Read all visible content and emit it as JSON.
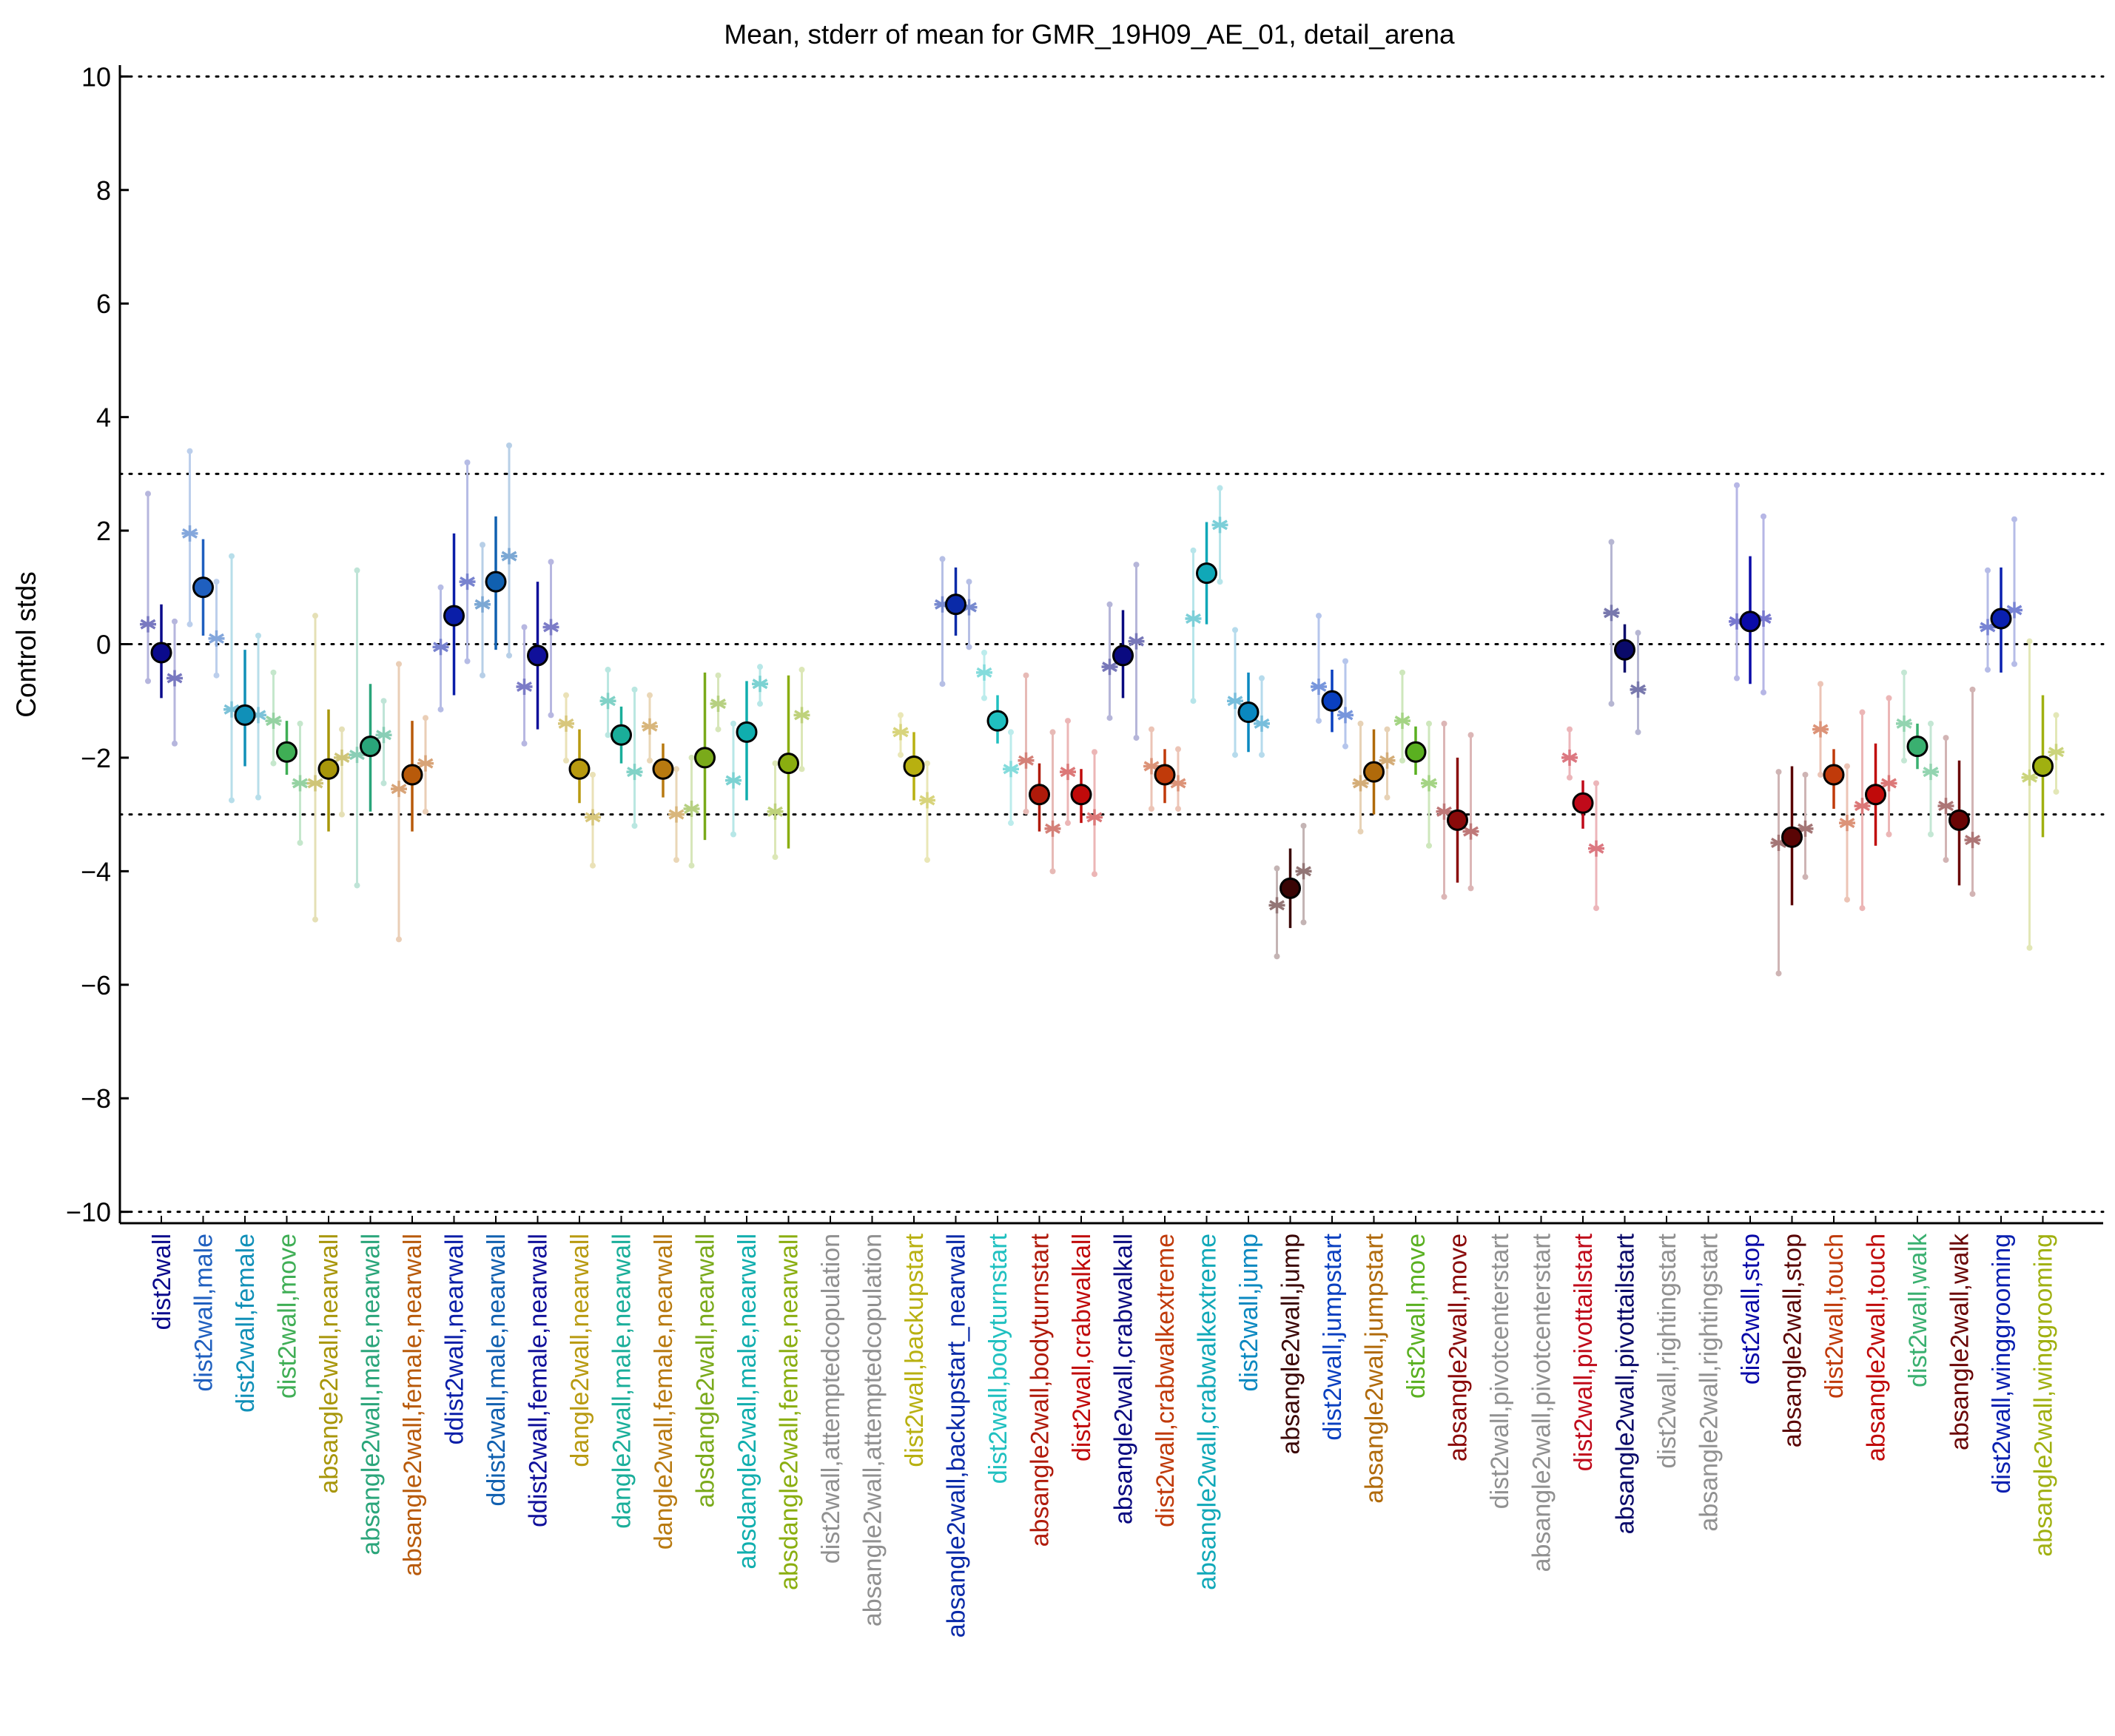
{
  "chart_data": {
    "type": "scatter",
    "title": "Mean, stderr of mean for GMR_19H09_AE_01, detail_arena",
    "xlabel": "",
    "ylabel": "Control stds",
    "ylim": [
      -10.2,
      10.2
    ],
    "yticks": [
      10,
      8,
      6,
      4,
      2,
      0,
      -2,
      -4,
      -6,
      -8,
      -10
    ],
    "reference_lines": [
      10,
      3,
      0,
      -3,
      -10
    ],
    "grid": false,
    "legend": "none",
    "categories": [
      "dist2wall",
      "dist2wall,male",
      "dist2wall,female",
      "dist2wall,move",
      "absangle2wall,nearwall",
      "absangle2wall,male,nearwall",
      "absangle2wall,female,nearwall",
      "ddist2wall,nearwall",
      "ddist2wall,male,nearwall",
      "ddist2wall,female,nearwall",
      "dangle2wall,nearwall",
      "dangle2wall,male,nearwall",
      "dangle2wall,female,nearwall",
      "absdangle2wall,nearwall",
      "absdangle2wall,male,nearwall",
      "absdangle2wall,female,nearwall",
      "dist2wall,attemptedcopulation",
      "absangle2wall,attemptedcopulation",
      "dist2wall,backupstart",
      "absangle2wall,backupstart_nearwall",
      "dist2wall,bodyturnstart",
      "absangle2wall,bodyturnstart",
      "dist2wall,crabwalkall",
      "absangle2wall,crabwalkall",
      "dist2wall,crabwalkextreme",
      "absangle2wall,crabwalkextreme",
      "dist2wall,jump",
      "absangle2wall,jump",
      "dist2wall,jumpstart",
      "absangle2wall,jumpstart",
      "dist2wall,move",
      "absangle2wall,move",
      "dist2wall,pivotcenterstart",
      "absangle2wall,pivotcenterstart",
      "dist2wall,pivottailstart",
      "absangle2wall,pivottailstart",
      "dist2wall,rightingstart",
      "absangle2wall,rightingstart",
      "dist2wall,stop",
      "absangle2wall,stop",
      "dist2wall,touch",
      "absangle2wall,touch",
      "dist2wall,walk",
      "absangle2wall,walk",
      "dist2wall,winggrooming",
      "absangle2wall,winggrooming"
    ],
    "label_colors": [
      "#0a0a8c",
      "#1f5fbf",
      "#1090b8",
      "#3fae55",
      "#a8960a",
      "#2aa57a",
      "#b85a0a",
      "#0a1ea8",
      "#1060b0",
      "#10109a",
      "#b89a10",
      "#1aae9a",
      "#b87a10",
      "#7aaa1a",
      "#10aeae",
      "#8aae10",
      "#909090",
      "#909090",
      "#b8b010",
      "#0a2aa8",
      "#20c0c0",
      "#b01a0a",
      "#c00a0a",
      "#0a0a80",
      "#c03a0a",
      "#10a8b8",
      "#0a88c0",
      "#3a0505",
      "#0a40c0",
      "#b06a0a",
      "#5ab020",
      "#8a0a0a",
      "#909090",
      "#909090",
      "#c00a1a",
      "#0a0a6a",
      "#909090",
      "#909090",
      "#0a0aa8",
      "#5a0505",
      "#c03a0a",
      "#c00a0a",
      "#3ab070",
      "#6a0505",
      "#0a20b0",
      "#a0b010"
    ],
    "points": [
      {
        "mean": -0.15,
        "lo": -0.95,
        "hi": 0.7,
        "color": "#0a0a8c",
        "subs": [
          {
            "off": -18,
            "m": 0.35,
            "lo": -0.65,
            "hi": 2.65
          },
          {
            "off": 18,
            "m": -0.6,
            "lo": -1.75,
            "hi": 0.4
          }
        ]
      },
      {
        "mean": 1.0,
        "lo": 0.15,
        "hi": 1.85,
        "color": "#1f5fbf",
        "subs": [
          {
            "off": -18,
            "m": 1.95,
            "lo": 0.35,
            "hi": 3.4
          },
          {
            "off": 18,
            "m": 0.1,
            "lo": -0.55,
            "hi": 1.1
          }
        ]
      },
      {
        "mean": -1.25,
        "lo": -2.15,
        "hi": -0.1,
        "color": "#1090b8",
        "subs": [
          {
            "off": -18,
            "m": -1.15,
            "lo": -2.75,
            "hi": 1.55
          },
          {
            "off": 18,
            "m": -1.25,
            "lo": -2.7,
            "hi": 0.15
          }
        ]
      },
      {
        "mean": -1.9,
        "lo": -2.3,
        "hi": -1.35,
        "color": "#3fae55",
        "subs": [
          {
            "off": -18,
            "m": -1.35,
            "lo": -2.1,
            "hi": -0.5
          },
          {
            "off": 18,
            "m": -2.45,
            "lo": -3.5,
            "hi": -1.4
          }
        ]
      },
      {
        "mean": -2.2,
        "lo": -3.3,
        "hi": -1.15,
        "color": "#a8960a",
        "subs": [
          {
            "off": -18,
            "m": -2.45,
            "lo": -4.85,
            "hi": 0.5
          },
          {
            "off": 18,
            "m": -2.0,
            "lo": -3.0,
            "hi": -1.5
          }
        ]
      },
      {
        "mean": -1.8,
        "lo": -2.95,
        "hi": -0.7,
        "color": "#2aa57a",
        "subs": [
          {
            "off": -18,
            "m": -1.95,
            "lo": -4.25,
            "hi": 1.3
          },
          {
            "off": 18,
            "m": -1.6,
            "lo": -2.45,
            "hi": -1.0
          }
        ]
      },
      {
        "mean": -2.3,
        "lo": -3.3,
        "hi": -1.35,
        "color": "#b85a0a",
        "subs": [
          {
            "off": -18,
            "m": -2.55,
            "lo": -5.2,
            "hi": -0.35
          },
          {
            "off": 18,
            "m": -2.1,
            "lo": -2.95,
            "hi": -1.3
          }
        ]
      },
      {
        "mean": 0.5,
        "lo": -0.9,
        "hi": 1.95,
        "color": "#0a1ea8",
        "subs": [
          {
            "off": -18,
            "m": -0.05,
            "lo": -1.15,
            "hi": 1.0
          },
          {
            "off": 18,
            "m": 1.1,
            "lo": -0.3,
            "hi": 3.2
          }
        ]
      },
      {
        "mean": 1.1,
        "lo": -0.1,
        "hi": 2.25,
        "color": "#1060b0",
        "subs": [
          {
            "off": -18,
            "m": 0.7,
            "lo": -0.55,
            "hi": 1.75
          },
          {
            "off": 18,
            "m": 1.55,
            "lo": -0.2,
            "hi": 3.5
          }
        ]
      },
      {
        "mean": -0.2,
        "lo": -1.5,
        "hi": 1.1,
        "color": "#10109a",
        "subs": [
          {
            "off": -18,
            "m": -0.75,
            "lo": -1.75,
            "hi": 0.3
          },
          {
            "off": 18,
            "m": 0.3,
            "lo": -1.25,
            "hi": 1.45
          }
        ]
      },
      {
        "mean": -2.2,
        "lo": -2.8,
        "hi": -1.5,
        "color": "#b89a10",
        "subs": [
          {
            "off": -18,
            "m": -1.4,
            "lo": -2.05,
            "hi": -0.9
          },
          {
            "off": 18,
            "m": -3.05,
            "lo": -3.9,
            "hi": -2.3
          }
        ]
      },
      {
        "mean": -1.6,
        "lo": -2.1,
        "hi": -1.1,
        "color": "#1aae9a",
        "subs": [
          {
            "off": -18,
            "m": -1.0,
            "lo": -1.6,
            "hi": -0.45
          },
          {
            "off": 18,
            "m": -2.25,
            "lo": -3.2,
            "hi": -0.8
          }
        ]
      },
      {
        "mean": -2.2,
        "lo": -2.7,
        "hi": -1.75,
        "color": "#b87a10",
        "subs": [
          {
            "off": -18,
            "m": -1.45,
            "lo": -2.05,
            "hi": -0.9
          },
          {
            "off": 18,
            "m": -3.0,
            "lo": -3.8,
            "hi": -2.2
          }
        ]
      },
      {
        "mean": -2.0,
        "lo": -3.45,
        "hi": -0.5,
        "color": "#7aaa1a",
        "subs": [
          {
            "off": -18,
            "m": -2.9,
            "lo": -3.9,
            "hi": -2.0
          },
          {
            "off": 18,
            "m": -1.05,
            "lo": -1.5,
            "hi": -0.55
          }
        ]
      },
      {
        "mean": -1.55,
        "lo": -2.75,
        "hi": -0.65,
        "color": "#10aeae",
        "subs": [
          {
            "off": -18,
            "m": -2.4,
            "lo": -3.35,
            "hi": -1.4
          },
          {
            "off": 18,
            "m": -0.7,
            "lo": -1.05,
            "hi": -0.4
          }
        ]
      },
      {
        "mean": -2.1,
        "lo": -3.6,
        "hi": -0.55,
        "color": "#8aae10",
        "subs": [
          {
            "off": -18,
            "m": -2.95,
            "lo": -3.75,
            "hi": -2.1
          },
          {
            "off": 18,
            "m": -1.25,
            "lo": -2.2,
            "hi": -0.45
          }
        ]
      },
      null,
      null,
      {
        "mean": -2.15,
        "lo": -2.75,
        "hi": -1.55,
        "color": "#b8b010",
        "subs": [
          {
            "off": -18,
            "m": -1.55,
            "lo": -1.95,
            "hi": -1.25
          },
          {
            "off": 18,
            "m": -2.75,
            "lo": -3.8,
            "hi": -2.1
          }
        ]
      },
      {
        "mean": 0.7,
        "lo": 0.15,
        "hi": 1.35,
        "color": "#0a2aa8",
        "subs": [
          {
            "off": -18,
            "m": 0.7,
            "lo": -0.7,
            "hi": 1.5
          },
          {
            "off": 18,
            "m": 0.65,
            "lo": -0.05,
            "hi": 1.1
          }
        ]
      },
      {
        "mean": -1.35,
        "lo": -1.75,
        "hi": -0.9,
        "color": "#20c0c0",
        "subs": [
          {
            "off": -18,
            "m": -0.5,
            "lo": -0.95,
            "hi": -0.15
          },
          {
            "off": 18,
            "m": -2.2,
            "lo": -3.15,
            "hi": -1.55
          }
        ]
      },
      {
        "mean": -2.65,
        "lo": -3.3,
        "hi": -2.1,
        "color": "#b01a0a",
        "subs": [
          {
            "off": -18,
            "m": -2.05,
            "lo": -2.95,
            "hi": -0.55
          },
          {
            "off": 18,
            "m": -3.25,
            "lo": -4.0,
            "hi": -1.55
          }
        ]
      },
      {
        "mean": -2.65,
        "lo": -3.15,
        "hi": -2.2,
        "color": "#c00a0a",
        "subs": [
          {
            "off": -18,
            "m": -2.25,
            "lo": -3.15,
            "hi": -1.35
          },
          {
            "off": 18,
            "m": -3.05,
            "lo": -4.05,
            "hi": -1.9
          }
        ]
      },
      {
        "mean": -0.2,
        "lo": -0.95,
        "hi": 0.6,
        "color": "#0a0a80",
        "subs": [
          {
            "off": -18,
            "m": -0.4,
            "lo": -1.3,
            "hi": 0.7
          },
          {
            "off": 18,
            "m": 0.05,
            "lo": -1.65,
            "hi": 1.4
          }
        ]
      },
      {
        "mean": -2.3,
        "lo": -2.8,
        "hi": -1.85,
        "color": "#c03a0a",
        "subs": [
          {
            "off": -18,
            "m": -2.15,
            "lo": -2.9,
            "hi": -1.5
          },
          {
            "off": 18,
            "m": -2.45,
            "lo": -2.9,
            "hi": -1.85
          }
        ]
      },
      {
        "mean": 1.25,
        "lo": 0.35,
        "hi": 2.15,
        "color": "#10a8b8",
        "subs": [
          {
            "off": -18,
            "m": 0.45,
            "lo": -1.0,
            "hi": 1.65
          },
          {
            "off": 18,
            "m": 2.1,
            "lo": 1.1,
            "hi": 2.75
          }
        ]
      },
      {
        "mean": -1.2,
        "lo": -1.9,
        "hi": -0.5,
        "color": "#0a88c0",
        "subs": [
          {
            "off": -18,
            "m": -1.0,
            "lo": -1.95,
            "hi": 0.25
          },
          {
            "off": 18,
            "m": -1.4,
            "lo": -1.95,
            "hi": -0.6
          }
        ]
      },
      {
        "mean": -4.3,
        "lo": -5.0,
        "hi": -3.6,
        "color": "#3a0505",
        "subs": [
          {
            "off": -18,
            "m": -4.6,
            "lo": -5.5,
            "hi": -3.95
          },
          {
            "off": 18,
            "m": -4.0,
            "lo": -4.9,
            "hi": -3.2
          }
        ]
      },
      {
        "mean": -1.0,
        "lo": -1.55,
        "hi": -0.45,
        "color": "#0a40c0",
        "subs": [
          {
            "off": -18,
            "m": -0.75,
            "lo": -1.35,
            "hi": 0.5
          },
          {
            "off": 18,
            "m": -1.25,
            "lo": -1.8,
            "hi": -0.3
          }
        ]
      },
      {
        "mean": -2.25,
        "lo": -3.0,
        "hi": -1.5,
        "color": "#b06a0a",
        "subs": [
          {
            "off": -18,
            "m": -2.45,
            "lo": -3.3,
            "hi": -1.4
          },
          {
            "off": 18,
            "m": -2.05,
            "lo": -2.7,
            "hi": -1.5
          }
        ]
      },
      {
        "mean": -1.9,
        "lo": -2.3,
        "hi": -1.45,
        "color": "#5ab020",
        "subs": [
          {
            "off": -18,
            "m": -1.35,
            "lo": -2.05,
            "hi": -0.5
          },
          {
            "off": 18,
            "m": -2.45,
            "lo": -3.55,
            "hi": -1.4
          }
        ]
      },
      {
        "mean": -3.1,
        "lo": -4.2,
        "hi": -2.0,
        "color": "#8a0a0a",
        "subs": [
          {
            "off": -18,
            "m": -2.95,
            "lo": -4.45,
            "hi": -1.4
          },
          {
            "off": 18,
            "m": -3.3,
            "lo": -4.3,
            "hi": -1.6
          }
        ]
      },
      null,
      null,
      {
        "mean": -2.8,
        "lo": -3.25,
        "hi": -2.4,
        "color": "#c00a1a",
        "subs": [
          {
            "off": -18,
            "m": -2.0,
            "lo": -2.35,
            "hi": -1.5
          },
          {
            "off": 18,
            "m": -3.6,
            "lo": -4.65,
            "hi": -2.45
          }
        ]
      },
      {
        "mean": -0.1,
        "lo": -0.5,
        "hi": 0.35,
        "color": "#0a0a6a",
        "subs": [
          {
            "off": -18,
            "m": 0.55,
            "lo": -1.05,
            "hi": 1.8
          },
          {
            "off": 18,
            "m": -0.8,
            "lo": -1.55,
            "hi": 0.2
          }
        ]
      },
      null,
      null,
      {
        "mean": 0.4,
        "lo": -0.7,
        "hi": 1.55,
        "color": "#0a0aa8",
        "subs": [
          {
            "off": -18,
            "m": 0.4,
            "lo": -0.6,
            "hi": 2.8
          },
          {
            "off": 18,
            "m": 0.45,
            "lo": -0.85,
            "hi": 2.25
          }
        ]
      },
      {
        "mean": -3.4,
        "lo": -4.6,
        "hi": -2.15,
        "color": "#5a0505",
        "subs": [
          {
            "off": -18,
            "m": -3.5,
            "lo": -5.8,
            "hi": -2.25
          },
          {
            "off": 18,
            "m": -3.25,
            "lo": -4.1,
            "hi": -2.3
          }
        ]
      },
      {
        "mean": -2.3,
        "lo": -2.9,
        "hi": -1.85,
        "color": "#c03a0a",
        "subs": [
          {
            "off": -18,
            "m": -1.5,
            "lo": -2.3,
            "hi": -0.7
          },
          {
            "off": 18,
            "m": -3.15,
            "lo": -4.5,
            "hi": -2.15
          }
        ]
      },
      {
        "mean": -2.65,
        "lo": -3.55,
        "hi": -1.75,
        "color": "#c00a0a",
        "subs": [
          {
            "off": -18,
            "m": -2.85,
            "lo": -4.65,
            "hi": -1.2
          },
          {
            "off": 18,
            "m": -2.45,
            "lo": -3.35,
            "hi": -0.95
          }
        ]
      },
      {
        "mean": -1.8,
        "lo": -2.2,
        "hi": -1.4,
        "color": "#3ab070",
        "subs": [
          {
            "off": -18,
            "m": -1.4,
            "lo": -2.05,
            "hi": -0.5
          },
          {
            "off": 18,
            "m": -2.25,
            "lo": -3.35,
            "hi": -1.4
          }
        ]
      },
      {
        "mean": -3.1,
        "lo": -4.25,
        "hi": -2.05,
        "color": "#6a0505",
        "subs": [
          {
            "off": -18,
            "m": -2.85,
            "lo": -3.8,
            "hi": -1.65
          },
          {
            "off": 18,
            "m": -3.45,
            "lo": -4.4,
            "hi": -0.8
          }
        ]
      },
      {
        "mean": 0.45,
        "lo": -0.5,
        "hi": 1.35,
        "color": "#0a20b0",
        "subs": [
          {
            "off": -18,
            "m": 0.3,
            "lo": -0.45,
            "hi": 1.3
          },
          {
            "off": 18,
            "m": 0.6,
            "lo": -0.35,
            "hi": 2.2
          }
        ]
      },
      {
        "mean": -2.15,
        "lo": -3.4,
        "hi": -0.9,
        "color": "#a0b010",
        "subs": [
          {
            "off": -18,
            "m": -2.35,
            "lo": -5.35,
            "hi": 0.05
          },
          {
            "off": 18,
            "m": -1.9,
            "lo": -2.6,
            "hi": -1.25
          }
        ]
      }
    ]
  }
}
